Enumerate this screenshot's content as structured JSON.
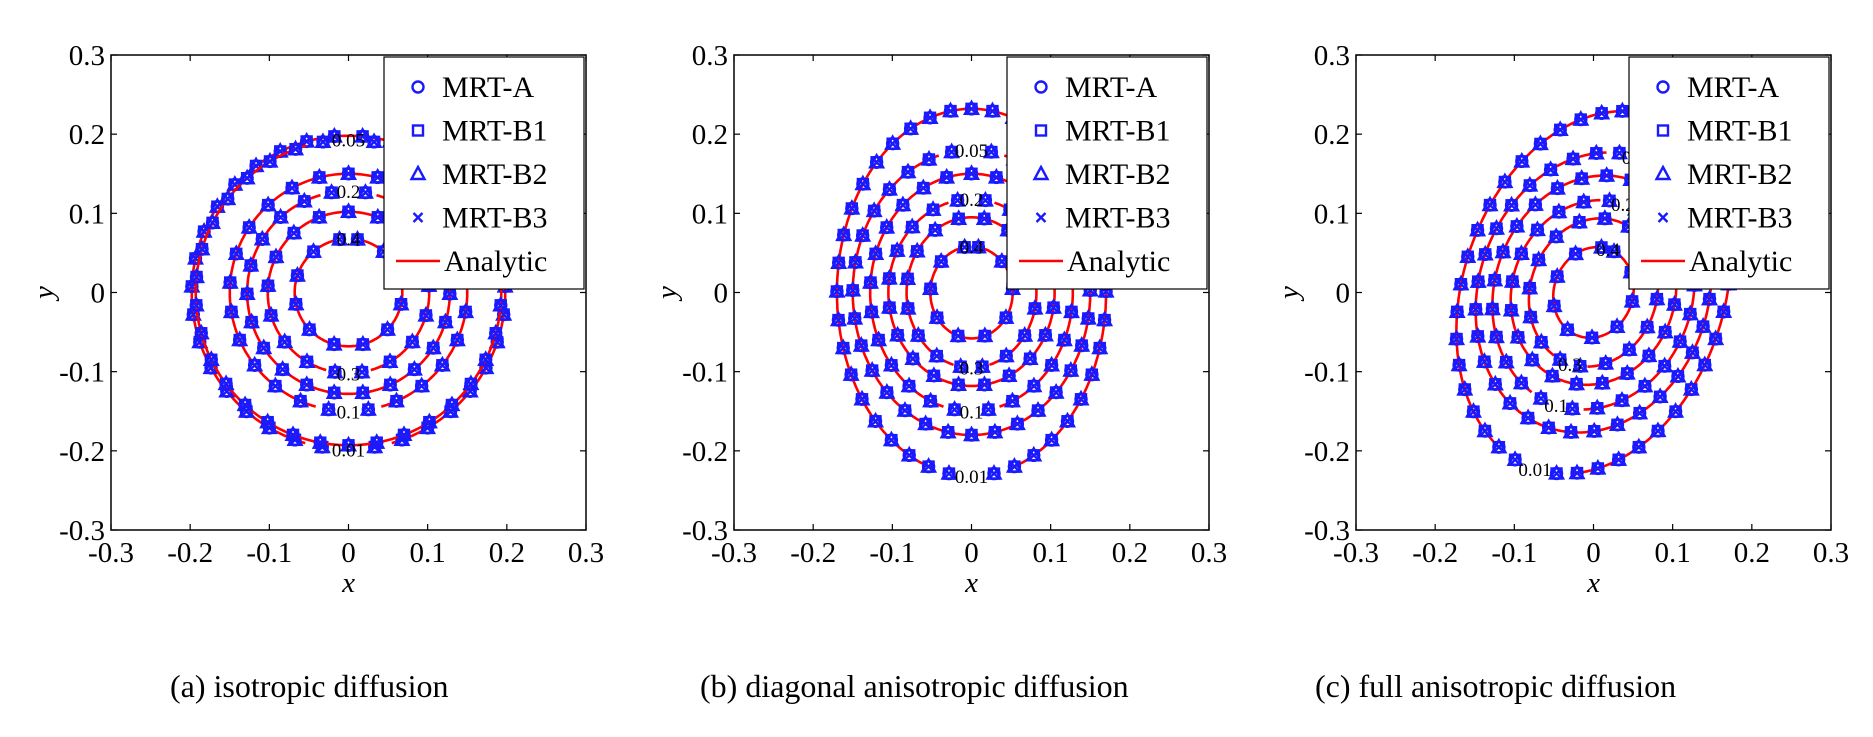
{
  "legend_entries": [
    "MRT-A",
    "MRT-B1",
    "MRT-B2",
    "MRT-B3",
    "Analytic"
  ],
  "colors": {
    "marker": "#1a1aff",
    "analytic": "#ff0000",
    "axes": "#000000"
  },
  "chart_data": [
    {
      "type": "line",
      "caption": "(a) isotropic diffusion",
      "xlabel": "x",
      "ylabel": "y",
      "xlim": [
        -0.3,
        0.3
      ],
      "ylim": [
        -0.3,
        0.3
      ],
      "xticks": [
        "-0.3",
        "-0.2",
        "-0.1",
        "0",
        "0.1",
        "0.2",
        "0.3"
      ],
      "yticks": [
        "-0.3",
        "-0.2",
        "-0.1",
        "0",
        "0.1",
        "0.2",
        "0.3"
      ],
      "legend": "top-right",
      "contours": [
        {
          "level": "0.01",
          "a": 0.198,
          "b": 0.198,
          "cx": 0,
          "cy": 0,
          "shear": 0,
          "label_pos": "bottom"
        },
        {
          "level": "0.05",
          "a": 0.193,
          "b": 0.193,
          "cx": 0,
          "cy": 0,
          "shear": 0,
          "label_pos": "top"
        },
        {
          "level": "0.1",
          "a": 0.15,
          "b": 0.15,
          "cx": 0,
          "cy": 0,
          "shear": 0,
          "label_pos": "bottom"
        },
        {
          "level": "0.2",
          "a": 0.128,
          "b": 0.128,
          "cx": 0,
          "cy": 0,
          "shear": 0,
          "label_pos": "top"
        },
        {
          "level": "0.3",
          "a": 0.102,
          "b": 0.102,
          "cx": 0,
          "cy": 0,
          "shear": 0,
          "label_pos": "bottom"
        },
        {
          "level": "0.4",
          "a": 0.068,
          "b": 0.068,
          "cx": 0,
          "cy": 0,
          "shear": 0,
          "label_pos": "top"
        }
      ]
    },
    {
      "type": "line",
      "caption": "(b) diagonal anisotropic diffusion",
      "xlabel": "x",
      "ylabel": "y",
      "xlim": [
        -0.3,
        0.3
      ],
      "ylim": [
        -0.3,
        0.3
      ],
      "xticks": [
        "-0.3",
        "-0.2",
        "-0.1",
        "0",
        "0.1",
        "0.2",
        "0.3"
      ],
      "yticks": [
        "-0.3",
        "-0.2",
        "-0.1",
        "0",
        "0.1",
        "0.2",
        "0.3"
      ],
      "legend": "top-right",
      "contours": [
        {
          "level": "0.01",
          "a": 0.17,
          "b": 0.232,
          "cx": 0,
          "cy": 0,
          "shear": 0,
          "label_pos": "bottom"
        },
        {
          "level": "0.05",
          "a": 0.15,
          "b": 0.18,
          "cx": 0,
          "cy": 0,
          "shear": 0,
          "label_pos": "top"
        },
        {
          "level": "0.1",
          "a": 0.128,
          "b": 0.15,
          "cx": 0,
          "cy": 0,
          "shear": 0,
          "label_pos": "bottom"
        },
        {
          "level": "0.2",
          "a": 0.105,
          "b": 0.118,
          "cx": 0,
          "cy": 0,
          "shear": 0,
          "label_pos": "top"
        },
        {
          "level": "0.3",
          "a": 0.082,
          "b": 0.095,
          "cx": 0,
          "cy": 0,
          "shear": 0,
          "label_pos": "bottom"
        },
        {
          "level": "0.4",
          "a": 0.052,
          "b": 0.058,
          "cx": 0,
          "cy": 0,
          "shear": 0,
          "label_pos": "top"
        }
      ]
    },
    {
      "type": "line",
      "caption": "(c) full anisotropic diffusion",
      "xlabel": "x",
      "ylabel": "y",
      "xlim": [
        -0.3,
        0.3
      ],
      "ylim": [
        -0.3,
        0.3
      ],
      "xticks": [
        "-0.3",
        "-0.2",
        "-0.1",
        "0",
        "0.1",
        "0.2",
        "0.3"
      ],
      "yticks": [
        "-0.3",
        "-0.2",
        "-0.1",
        "0",
        "0.1",
        "0.2",
        "0.3"
      ],
      "legend": "top-right",
      "contours": [
        {
          "level": "0.01",
          "a": 0.165,
          "b": 0.235,
          "cx": 0,
          "cy": 0,
          "shear": -0.55,
          "label_pos": "bottom"
        },
        {
          "level": "0.05",
          "a": 0.145,
          "b": 0.18,
          "cx": 0,
          "cy": 0,
          "shear": -0.55,
          "label_pos": "top"
        },
        {
          "level": "0.1",
          "a": 0.125,
          "b": 0.15,
          "cx": 0,
          "cy": 0,
          "shear": -0.55,
          "label_pos": "bottom"
        },
        {
          "level": "0.2",
          "a": 0.103,
          "b": 0.118,
          "cx": 0,
          "cy": 0,
          "shear": -0.55,
          "label_pos": "top"
        },
        {
          "level": "0.3",
          "a": 0.08,
          "b": 0.095,
          "cx": 0,
          "cy": 0,
          "shear": -0.55,
          "label_pos": "bottom"
        },
        {
          "level": "0.4",
          "a": 0.05,
          "b": 0.058,
          "cx": 0,
          "cy": 0,
          "shear": -0.55,
          "label_pos": "top"
        }
      ]
    }
  ]
}
